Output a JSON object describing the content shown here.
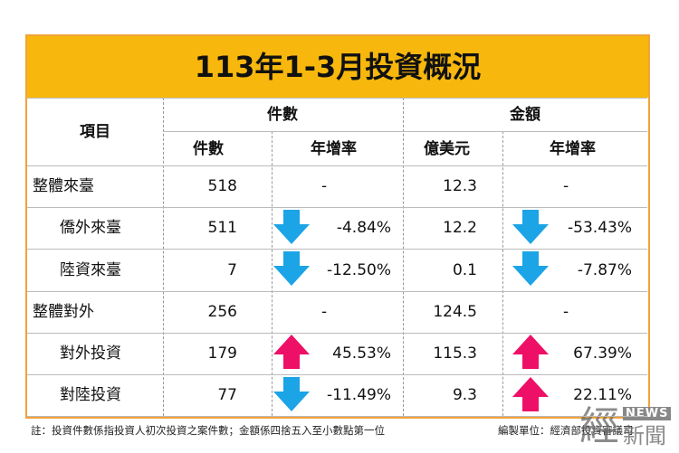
{
  "title": "113年1-3月投資概況",
  "table": {
    "header": {
      "item": "項目",
      "count_group": "件數",
      "amount_group": "金額",
      "count": "件數",
      "count_yoy": "年增率",
      "amount": "億美元",
      "amount_yoy": "年增率"
    },
    "rows": [
      [
        "整體來臺",
        "518",
        "-",
        "12.3",
        "-"
      ],
      [
        "僑外來臺",
        "511",
        "-4.84%",
        "12.2",
        "-53.43%"
      ],
      [
        "陸資來臺",
        "7",
        "-12.50%",
        "0.1",
        "-7.87%"
      ],
      [
        "整體對外",
        "256",
        "-",
        "124.5",
        "-"
      ],
      [
        "對外投資",
        "179",
        "45.53%",
        "115.3",
        "67.39%"
      ],
      [
        "對陸投資",
        "77",
        "-11.49%",
        "9.3",
        "22.11%"
      ]
    ]
  },
  "note": "註：投資件數係指投資人初次投資之案件數；金額係四捨五入至小數點第一位",
  "compiler": "編製單位：經濟部投資審議司",
  "logo": {
    "main": "經",
    "news": "NEWS",
    "sub": "新聞"
  }
}
